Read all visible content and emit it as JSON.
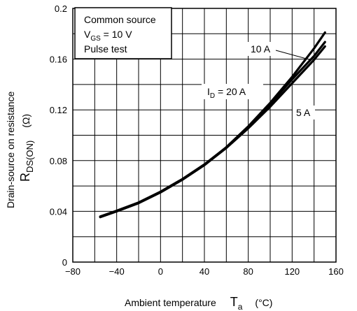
{
  "chart_data": {
    "type": "line",
    "xlabel": "Ambient temperature",
    "xlabel_symbol": "T",
    "xlabel_symbol_sub": "a",
    "xlabel_unit": "(°C)",
    "ylabel_line1": "Drain-source on resistance",
    "ylabel_symbol": "R",
    "ylabel_symbol_sub": "DS(ON)",
    "ylabel_unit": "(Ω)",
    "xlim": [
      -80,
      160
    ],
    "ylim": [
      0,
      0.2
    ],
    "xticks": [
      -80,
      -40,
      0,
      40,
      80,
      120,
      160
    ],
    "xtick_labels": [
      "−80",
      "−40",
      "0",
      "40",
      "80",
      "120",
      "160"
    ],
    "yticks": [
      0,
      0.04,
      0.08,
      0.12,
      0.16,
      0.2
    ],
    "ytick_labels": [
      "0",
      "0.04",
      "0.08",
      "0.12",
      "0.16",
      "0.2"
    ],
    "x_grid_step": 20,
    "y_grid_step": 0.02,
    "grid": true,
    "conditions": {
      "line1": "Common source",
      "line2_symbol": "V",
      "line2_sub": "GS",
      "line2_value": " = 10 V",
      "line3": "Pulse test"
    },
    "series": [
      {
        "name": "10 A",
        "x": [
          -55,
          -40,
          -20,
          0,
          20,
          40,
          60,
          80,
          100,
          120,
          140,
          150
        ],
        "y": [
          0.0355,
          0.04,
          0.0465,
          0.055,
          0.065,
          0.0765,
          0.0905,
          0.107,
          0.1255,
          0.146,
          0.1685,
          0.181
        ]
      },
      {
        "name": "I_D = 20 A",
        "x": [
          -55,
          -40,
          -20,
          0,
          20,
          40,
          60,
          80,
          100,
          120,
          140,
          150
        ],
        "y": [
          0.036,
          0.0405,
          0.047,
          0.0555,
          0.0655,
          0.077,
          0.0905,
          0.1065,
          0.1245,
          0.144,
          0.1625,
          0.1735
        ]
      },
      {
        "name": "5 A",
        "x": [
          -55,
          -40,
          -20,
          0,
          20,
          40,
          60,
          80,
          100,
          120,
          140,
          150
        ],
        "y": [
          0.0355,
          0.04,
          0.0465,
          0.055,
          0.065,
          0.0765,
          0.09,
          0.1055,
          0.1225,
          0.141,
          0.1595,
          0.17
        ]
      }
    ],
    "annotations": {
      "ten": "10 A",
      "twenty_symbol": "I",
      "twenty_sub": "D",
      "twenty_value": " = 20 A",
      "five": "5 A"
    }
  }
}
